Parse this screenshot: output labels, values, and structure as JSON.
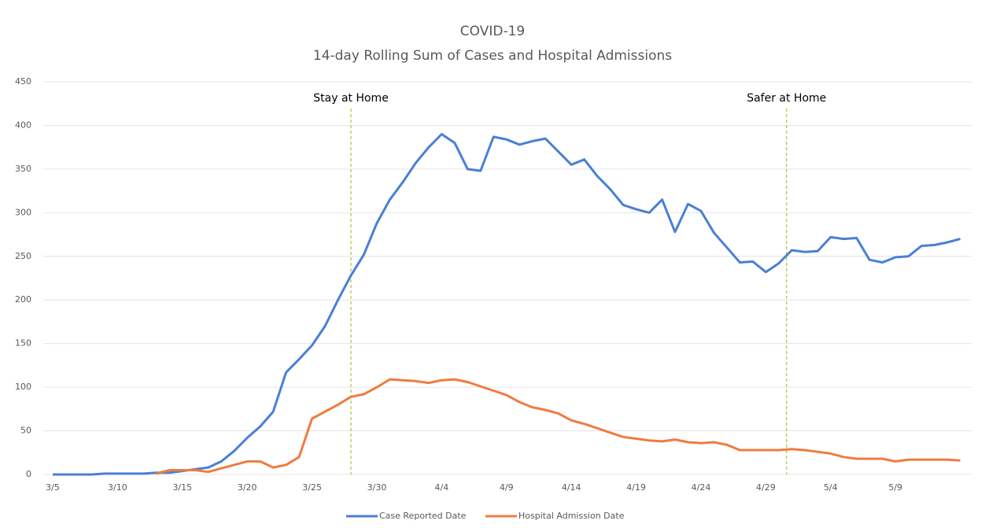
{
  "chart_data": {
    "type": "line",
    "title": "COVID-19",
    "subtitle": "14-day Rolling Sum of Cases and Hospital Admissions",
    "categories": [
      "3/5",
      null,
      null,
      null,
      null,
      "3/10",
      null,
      null,
      null,
      null,
      "3/15",
      null,
      null,
      null,
      null,
      "3/20",
      null,
      null,
      null,
      null,
      "3/25",
      null,
      null,
      null,
      null,
      "3/30",
      null,
      null,
      null,
      null,
      "4/4",
      null,
      null,
      null,
      null,
      "4/9",
      null,
      null,
      null,
      null,
      "4/14",
      null,
      null,
      null,
      null,
      "4/19",
      null,
      null,
      null,
      null,
      "4/24",
      null,
      null,
      null,
      null,
      "4/29",
      null,
      null,
      null,
      null,
      "5/4",
      null,
      null,
      null,
      null,
      "5/9",
      null,
      null,
      null,
      null,
      null
    ],
    "series": [
      {
        "name": "Case Reported Date",
        "color": "#4a7fd6",
        "values": [
          0,
          0,
          0,
          0,
          1,
          1,
          1,
          1,
          2,
          2,
          4,
          6,
          8,
          15,
          27,
          42,
          55,
          72,
          117,
          132,
          148,
          170,
          200,
          228,
          252,
          288,
          315,
          335,
          357,
          375,
          390,
          380,
          350,
          348,
          387,
          384,
          378,
          382,
          385,
          370,
          355,
          361,
          342,
          327,
          309,
          304,
          300,
          315,
          278,
          310,
          302,
          277,
          260,
          243,
          244,
          232,
          242,
          257,
          255,
          256,
          272,
          270,
          271,
          246,
          243,
          249,
          250,
          262,
          263,
          266,
          270
        ]
      },
      {
        "name": "Hospital Admission Date",
        "color": "#f07b3f",
        "values": [
          null,
          null,
          null,
          null,
          null,
          null,
          null,
          null,
          1,
          5,
          5,
          5,
          3,
          7,
          11,
          15,
          15,
          8,
          11,
          20,
          64,
          72,
          80,
          89,
          92,
          100,
          109,
          108,
          107,
          105,
          108,
          109,
          106,
          101,
          96,
          91,
          83,
          77,
          74,
          70,
          62,
          58,
          53,
          48,
          43,
          41,
          39,
          38,
          40,
          37,
          36,
          37,
          34,
          28,
          28,
          28,
          28,
          29,
          28,
          26,
          24,
          20,
          18,
          18,
          18,
          15,
          17,
          17,
          17,
          17,
          16
        ]
      }
    ],
    "annotations": [
      {
        "text": "Stay at Home",
        "x": 23
      },
      {
        "text": "Safer at Home",
        "x": 56.6
      }
    ],
    "ylim": [
      0,
      450
    ],
    "yticks": [
      0,
      50,
      100,
      150,
      200,
      250,
      300,
      350,
      400,
      450
    ],
    "grid": true,
    "legend": "bottom"
  }
}
